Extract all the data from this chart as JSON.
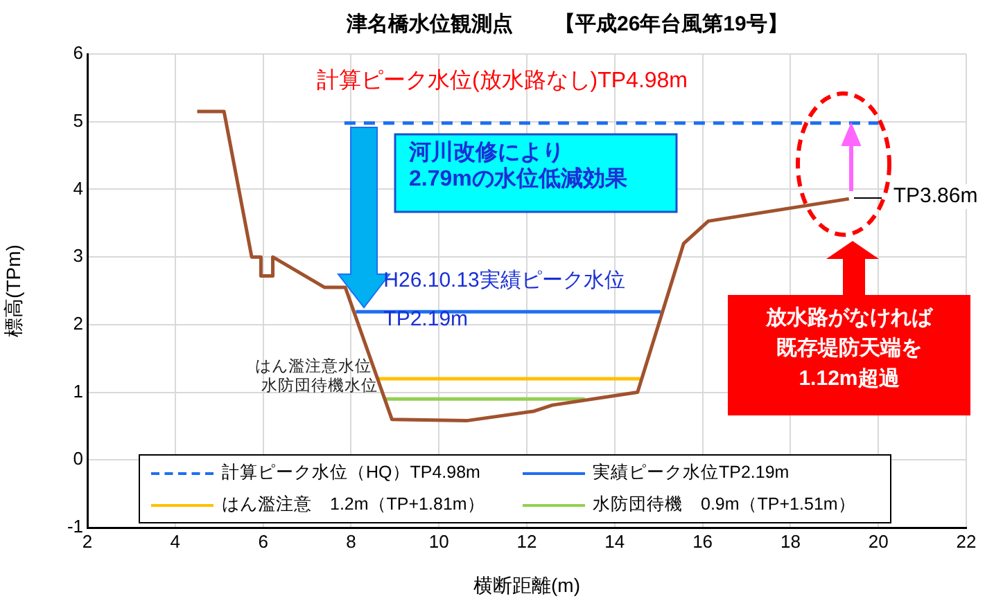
{
  "chart_data": {
    "type": "line",
    "title": "津名橋水位観測点　　【平成26年台風第19号】",
    "xlabel": "横断距離(m)",
    "ylabel": "標高(TPm)",
    "xlim": [
      2,
      22
    ],
    "xticks": [
      2,
      4,
      6,
      8,
      10,
      12,
      14,
      16,
      18,
      20,
      22
    ],
    "ylim": [
      -1,
      6
    ],
    "yticks": [
      -1,
      0,
      1,
      2,
      3,
      4,
      5,
      6
    ],
    "grid": true,
    "legend": "bottom",
    "marker": "none",
    "series": [
      {
        "color": "#a0522d",
        "x": [
          4.5,
          5.11,
          5.74,
          5.95,
          5.95,
          6.22,
          6.22,
          7.4,
          7.87,
          8.93,
          10.63,
          12.16,
          12.58,
          14.52,
          15.57,
          16.13,
          19.33
        ],
        "values": [
          5.15,
          5.15,
          3.0,
          3.0,
          2.72,
          2.72,
          3.0,
          2.55,
          2.55,
          0.6,
          0.58,
          0.72,
          0.81,
          1.0,
          3.2,
          3.53,
          3.86
        ]
      },
      {
        "name": "計算ピーク水位（HQ）TP4.98m",
        "color": "#1e6ff0",
        "line_style": "dashed",
        "x": [
          7.85,
          20.0
        ],
        "values": [
          4.98,
          4.98
        ]
      },
      {
        "name": "実績ピーク水位TP2.19m",
        "color": "#1e6ff0",
        "x": [
          8.11,
          15.05
        ],
        "values": [
          2.19,
          2.19
        ]
      },
      {
        "name": "はん濫注意　1.2m（TP+1.81m）",
        "color": "#ffc000",
        "x": [
          8.6,
          14.58
        ],
        "values": [
          1.2,
          1.2
        ]
      },
      {
        "name": "水防団待機　0.9m（TP+1.51m）",
        "color": "#92d050",
        "x": [
          8.74,
          13.32
        ],
        "values": [
          0.9,
          0.9
        ]
      }
    ],
    "annotations": [
      {
        "text": "計算ピーク水位(放水路なし)TP4.98m",
        "x": 7.85,
        "y": 4.98
      },
      "河川改修により2.79mの水位低減効果",
      {
        "text": "H26.10.13実績ピーク水位",
        "x": 8.11,
        "y": 2.19
      },
      {
        "text": "TP2.19m",
        "x": 8.11,
        "y": 2.19
      },
      {
        "text": "はん濫注意水位",
        "x": 8.6,
        "y": 1.2
      },
      {
        "text": "水防団待機水位",
        "x": 8.74,
        "y": 0.9
      },
      {
        "text": "TP3.86m",
        "x": 19.33,
        "y": 3.86
      },
      "放水路がなければ既存堤防天端を1.12m超過"
    ]
  }
}
